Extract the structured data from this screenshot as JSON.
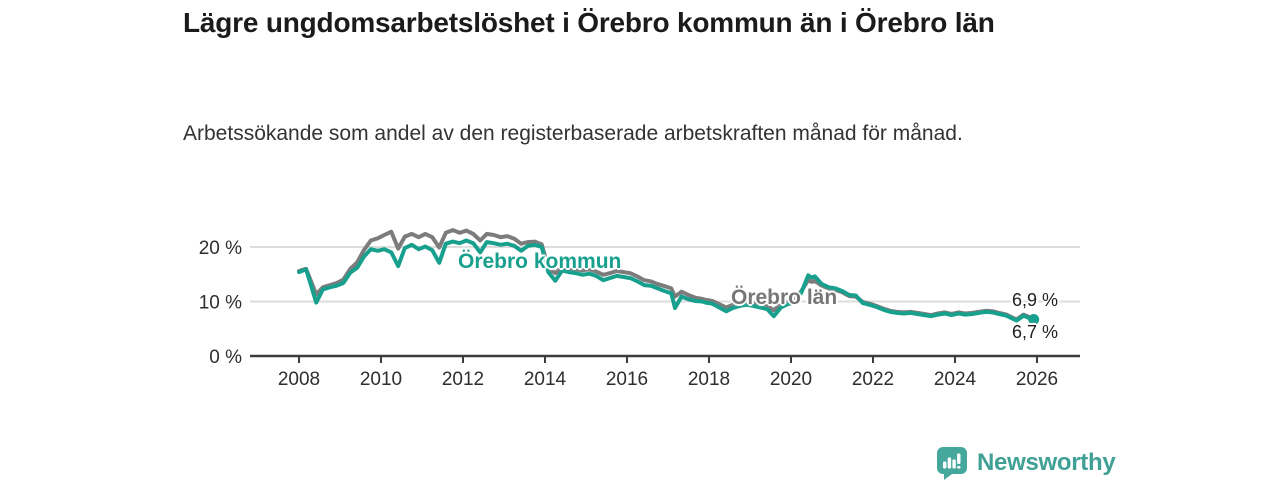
{
  "branding": {
    "name": "Newsworthy",
    "logo_icon": "bar-chart-speech-bubble-icon",
    "brand_color": "#3fa095"
  },
  "chart_data": {
    "type": "line",
    "title": "Lägre ungdomsarbetslöshet i Örebro kommun än i Örebro län",
    "subtitle": "Arbetssökande som andel av den registerbaserade arbetskraften månad för månad.",
    "unit": "%",
    "grid": "horizontal",
    "legend_position": "inline-labels",
    "xlim": [
      2006.8,
      2027.1
    ],
    "ylim": [
      0,
      24
    ],
    "x_ticks": [
      {
        "value": 2008,
        "label": "2008"
      },
      {
        "value": 2010,
        "label": "2010"
      },
      {
        "value": 2012,
        "label": "2012"
      },
      {
        "value": 2014,
        "label": "2014"
      },
      {
        "value": 2016,
        "label": "2016"
      },
      {
        "value": 2018,
        "label": "2018"
      },
      {
        "value": 2020,
        "label": "2020"
      },
      {
        "value": 2022,
        "label": "2022"
      },
      {
        "value": 2024,
        "label": "2024"
      },
      {
        "value": 2026,
        "label": "2026"
      }
    ],
    "y_ticks": [
      {
        "value": 0,
        "label": "0 %"
      },
      {
        "value": 10,
        "label": "10 %"
      },
      {
        "value": 20,
        "label": "20 %"
      }
    ],
    "series": [
      {
        "name": "Örebro län",
        "color": "#7c7c7c",
        "end_label": "6,9 %",
        "end_value": 6.9,
        "end_dot": false,
        "points": [
          [
            2008.0,
            15.6
          ],
          [
            2008.17,
            16.0
          ],
          [
            2008.25,
            14.5
          ],
          [
            2008.42,
            11.3
          ],
          [
            2008.58,
            12.6
          ],
          [
            2008.75,
            13.0
          ],
          [
            2008.92,
            13.4
          ],
          [
            2009.08,
            14.0
          ],
          [
            2009.25,
            16.0
          ],
          [
            2009.42,
            17.2
          ],
          [
            2009.58,
            19.4
          ],
          [
            2009.75,
            21.2
          ],
          [
            2009.92,
            21.6
          ],
          [
            2010.08,
            22.2
          ],
          [
            2010.25,
            22.8
          ],
          [
            2010.42,
            19.7
          ],
          [
            2010.58,
            21.9
          ],
          [
            2010.75,
            22.4
          ],
          [
            2010.92,
            21.8
          ],
          [
            2011.08,
            22.4
          ],
          [
            2011.25,
            21.8
          ],
          [
            2011.42,
            19.9
          ],
          [
            2011.58,
            22.6
          ],
          [
            2011.75,
            23.1
          ],
          [
            2011.92,
            22.6
          ],
          [
            2012.08,
            23.0
          ],
          [
            2012.25,
            22.4
          ],
          [
            2012.42,
            21.2
          ],
          [
            2012.58,
            22.4
          ],
          [
            2012.75,
            22.2
          ],
          [
            2012.92,
            21.8
          ],
          [
            2013.08,
            22.0
          ],
          [
            2013.25,
            21.5
          ],
          [
            2013.42,
            20.6
          ],
          [
            2013.58,
            20.9
          ],
          [
            2013.75,
            21.0
          ],
          [
            2013.92,
            20.5
          ],
          [
            2014.08,
            16.1
          ],
          [
            2014.25,
            15.2
          ],
          [
            2014.42,
            16.4
          ],
          [
            2014.58,
            16.1
          ],
          [
            2014.75,
            15.9
          ],
          [
            2014.92,
            15.7
          ],
          [
            2015.08,
            15.9
          ],
          [
            2015.25,
            15.5
          ],
          [
            2015.42,
            14.9
          ],
          [
            2015.58,
            15.2
          ],
          [
            2015.75,
            15.6
          ],
          [
            2015.92,
            15.4
          ],
          [
            2016.08,
            15.2
          ],
          [
            2016.25,
            14.6
          ],
          [
            2016.42,
            13.9
          ],
          [
            2016.58,
            13.7
          ],
          [
            2016.75,
            13.2
          ],
          [
            2016.92,
            12.8
          ],
          [
            2017.08,
            12.4
          ],
          [
            2017.17,
            10.9
          ],
          [
            2017.33,
            11.8
          ],
          [
            2017.5,
            11.2
          ],
          [
            2017.67,
            10.7
          ],
          [
            2017.83,
            10.5
          ],
          [
            2017.92,
            10.3
          ],
          [
            2018.08,
            10.1
          ],
          [
            2018.25,
            9.5
          ],
          [
            2018.42,
            8.9
          ],
          [
            2018.58,
            9.4
          ],
          [
            2018.75,
            9.7
          ],
          [
            2018.92,
            9.9
          ],
          [
            2019.08,
            9.7
          ],
          [
            2019.25,
            9.4
          ],
          [
            2019.42,
            9.2
          ],
          [
            2019.58,
            8.4
          ],
          [
            2019.75,
            9.5
          ],
          [
            2019.92,
            10.0
          ],
          [
            2020.08,
            10.3
          ],
          [
            2020.25,
            11.9
          ],
          [
            2020.42,
            13.9
          ],
          [
            2020.5,
            13.6
          ],
          [
            2020.58,
            13.8
          ],
          [
            2020.75,
            12.9
          ],
          [
            2020.92,
            12.4
          ],
          [
            2021.08,
            12.1
          ],
          [
            2021.25,
            11.7
          ],
          [
            2021.42,
            11.0
          ],
          [
            2021.58,
            10.9
          ],
          [
            2021.75,
            9.9
          ],
          [
            2021.92,
            9.6
          ],
          [
            2022.08,
            9.2
          ],
          [
            2022.25,
            8.7
          ],
          [
            2022.42,
            8.3
          ],
          [
            2022.58,
            8.1
          ],
          [
            2022.75,
            8.0
          ],
          [
            2022.92,
            8.1
          ],
          [
            2023.08,
            7.9
          ],
          [
            2023.25,
            7.7
          ],
          [
            2023.42,
            7.5
          ],
          [
            2023.58,
            7.8
          ],
          [
            2023.75,
            8.0
          ],
          [
            2023.92,
            7.7
          ],
          [
            2024.08,
            8.0
          ],
          [
            2024.25,
            7.8
          ],
          [
            2024.42,
            7.9
          ],
          [
            2024.58,
            8.1
          ],
          [
            2024.75,
            8.3
          ],
          [
            2024.92,
            8.2
          ],
          [
            2025.08,
            7.9
          ],
          [
            2025.25,
            7.6
          ],
          [
            2025.42,
            7.0
          ],
          [
            2025.5,
            6.7
          ],
          [
            2025.67,
            7.6
          ],
          [
            2025.83,
            7.1
          ],
          [
            2025.92,
            6.9
          ]
        ]
      },
      {
        "name": "Örebro kommun",
        "color": "#18a08e",
        "end_label": "6,7 %",
        "end_value": 6.7,
        "end_dot": true,
        "points": [
          [
            2008.0,
            15.4
          ],
          [
            2008.17,
            15.9
          ],
          [
            2008.25,
            14.0
          ],
          [
            2008.42,
            9.8
          ],
          [
            2008.58,
            12.2
          ],
          [
            2008.75,
            12.6
          ],
          [
            2008.92,
            12.9
          ],
          [
            2009.08,
            13.4
          ],
          [
            2009.25,
            15.3
          ],
          [
            2009.42,
            16.2
          ],
          [
            2009.58,
            18.2
          ],
          [
            2009.75,
            19.6
          ],
          [
            2009.92,
            19.3
          ],
          [
            2010.08,
            19.6
          ],
          [
            2010.25,
            19.0
          ],
          [
            2010.42,
            16.5
          ],
          [
            2010.58,
            19.8
          ],
          [
            2010.75,
            20.4
          ],
          [
            2010.92,
            19.6
          ],
          [
            2011.08,
            20.1
          ],
          [
            2011.25,
            19.4
          ],
          [
            2011.42,
            17.1
          ],
          [
            2011.58,
            20.6
          ],
          [
            2011.75,
            21.0
          ],
          [
            2011.92,
            20.7
          ],
          [
            2012.08,
            21.2
          ],
          [
            2012.25,
            20.7
          ],
          [
            2012.42,
            19.0
          ],
          [
            2012.58,
            20.9
          ],
          [
            2012.75,
            20.7
          ],
          [
            2012.92,
            20.4
          ],
          [
            2013.08,
            20.6
          ],
          [
            2013.25,
            20.2
          ],
          [
            2013.42,
            19.3
          ],
          [
            2013.58,
            20.2
          ],
          [
            2013.75,
            20.4
          ],
          [
            2013.92,
            20.0
          ],
          [
            2014.08,
            15.4
          ],
          [
            2014.25,
            13.8
          ],
          [
            2014.42,
            15.7
          ],
          [
            2014.58,
            15.4
          ],
          [
            2014.75,
            15.2
          ],
          [
            2014.92,
            14.9
          ],
          [
            2015.08,
            15.1
          ],
          [
            2015.25,
            14.7
          ],
          [
            2015.42,
            13.9
          ],
          [
            2015.58,
            14.3
          ],
          [
            2015.75,
            14.7
          ],
          [
            2015.92,
            14.5
          ],
          [
            2016.08,
            14.3
          ],
          [
            2016.25,
            13.7
          ],
          [
            2016.42,
            13.0
          ],
          [
            2016.58,
            12.9
          ],
          [
            2016.75,
            12.4
          ],
          [
            2016.92,
            11.9
          ],
          [
            2017.08,
            11.5
          ],
          [
            2017.17,
            8.8
          ],
          [
            2017.33,
            10.9
          ],
          [
            2017.5,
            10.4
          ],
          [
            2017.67,
            10.1
          ],
          [
            2017.83,
            10.0
          ],
          [
            2017.92,
            9.8
          ],
          [
            2018.08,
            9.6
          ],
          [
            2018.25,
            8.9
          ],
          [
            2018.42,
            8.2
          ],
          [
            2018.58,
            8.8
          ],
          [
            2018.75,
            9.2
          ],
          [
            2018.92,
            9.4
          ],
          [
            2019.08,
            9.2
          ],
          [
            2019.25,
            8.9
          ],
          [
            2019.42,
            8.6
          ],
          [
            2019.58,
            7.3
          ],
          [
            2019.75,
            8.9
          ],
          [
            2019.92,
            9.5
          ],
          [
            2020.08,
            9.8
          ],
          [
            2020.25,
            11.6
          ],
          [
            2020.42,
            14.8
          ],
          [
            2020.5,
            14.4
          ],
          [
            2020.58,
            14.6
          ],
          [
            2020.75,
            13.2
          ],
          [
            2020.92,
            12.6
          ],
          [
            2021.08,
            12.4
          ],
          [
            2021.25,
            11.9
          ],
          [
            2021.42,
            11.2
          ],
          [
            2021.58,
            11.1
          ],
          [
            2021.75,
            9.7
          ],
          [
            2021.92,
            9.4
          ],
          [
            2022.08,
            9.0
          ],
          [
            2022.25,
            8.5
          ],
          [
            2022.42,
            8.1
          ],
          [
            2022.58,
            7.9
          ],
          [
            2022.75,
            7.8
          ],
          [
            2022.92,
            7.9
          ],
          [
            2023.08,
            7.7
          ],
          [
            2023.25,
            7.5
          ],
          [
            2023.42,
            7.3
          ],
          [
            2023.58,
            7.6
          ],
          [
            2023.75,
            7.8
          ],
          [
            2023.92,
            7.5
          ],
          [
            2024.08,
            7.8
          ],
          [
            2024.25,
            7.6
          ],
          [
            2024.42,
            7.7
          ],
          [
            2024.58,
            7.9
          ],
          [
            2024.75,
            8.1
          ],
          [
            2024.92,
            8.0
          ],
          [
            2025.08,
            7.7
          ],
          [
            2025.25,
            7.4
          ],
          [
            2025.42,
            6.8
          ],
          [
            2025.5,
            6.5
          ],
          [
            2025.67,
            7.4
          ],
          [
            2025.83,
            6.9
          ],
          [
            2025.92,
            6.7
          ]
        ]
      }
    ]
  }
}
